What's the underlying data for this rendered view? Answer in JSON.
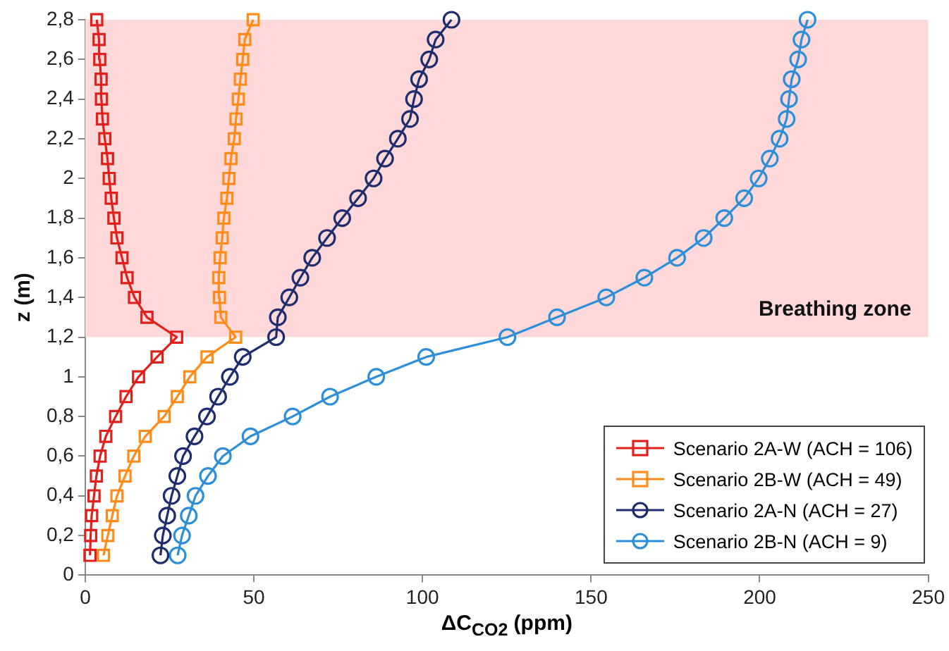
{
  "chart_data": {
    "type": "line",
    "xlabel": "ΔC$_{CO2}$ (ppm)",
    "ylabel": "z (m)",
    "xlim": [
      0,
      250
    ],
    "xticks": [
      0,
      50,
      100,
      150,
      200,
      250
    ],
    "ylim": [
      0,
      2.8
    ],
    "yticks": [
      0,
      {
        "value": 0.2,
        "label": "0,2"
      },
      {
        "value": 0.4,
        "label": "0,4"
      },
      {
        "value": 0.6,
        "label": "0,6"
      },
      {
        "value": 0.8,
        "label": "0,8"
      },
      1,
      {
        "value": 1.2,
        "label": "1,2"
      },
      {
        "value": 1.4,
        "label": "1,4"
      },
      {
        "value": 1.6,
        "label": "1,6"
      },
      {
        "value": 1.8,
        "label": "1,8"
      },
      2,
      {
        "value": 2.2,
        "label": "2,2"
      },
      {
        "value": 2.4,
        "label": "2,4"
      },
      {
        "value": 2.6,
        "label": "2,6"
      },
      {
        "value": 2.8,
        "label": "2,8"
      }
    ],
    "grid": false,
    "legend": "bottom right",
    "line_style": "solid",
    "bands": [
      {
        "axis": "y",
        "from": 1.2,
        "to": 2.8,
        "label": "Breathing zone",
        "color": "#ffd9d9"
      }
    ],
    "series": [
      {
        "name": "Scenario 2A-W (ACH = 106)",
        "color": "#e0201b",
        "marker": "square",
        "x": [
          1.4,
          1.6,
          1.9,
          2.6,
          3.3,
          4.4,
          6.1,
          9.0,
          12.1,
          15.8,
          21.3,
          27.1,
          18.3,
          14.6,
          12.4,
          10.9,
          9.4,
          8.5,
          7.7,
          7.1,
          6.6,
          5.8,
          5.1,
          4.8,
          4.7,
          4.3,
          4.1,
          3.4
        ],
        "values": [
          0.1,
          0.2,
          0.3,
          0.4,
          0.5,
          0.6,
          0.7,
          0.8,
          0.9,
          1,
          1.1,
          1.2,
          1.3,
          1.4,
          1.5,
          1.6,
          1.7,
          1.8,
          1.9,
          2,
          2.1,
          2.2,
          2.3,
          2.4,
          2.5,
          2.6,
          2.7,
          2.8
        ]
      },
      {
        "name": "Scenario 2B-W (ACH = 49)",
        "color": "#ff8c1a",
        "marker": "square",
        "x": [
          5.4,
          6.7,
          8.0,
          9.4,
          11.8,
          14.4,
          17.8,
          23.4,
          27.3,
          31.0,
          36.1,
          44.6,
          40.2,
          39.8,
          39.6,
          40.0,
          40.6,
          41.1,
          42.0,
          42.6,
          43.2,
          44.2,
          44.7,
          45.4,
          46.0,
          46.7,
          47.3,
          49.8
        ],
        "values": [
          0.1,
          0.2,
          0.3,
          0.4,
          0.5,
          0.6,
          0.7,
          0.8,
          0.9,
          1,
          1.1,
          1.2,
          1.3,
          1.4,
          1.5,
          1.6,
          1.7,
          1.8,
          1.9,
          2,
          2.1,
          2.2,
          2.3,
          2.4,
          2.5,
          2.6,
          2.7,
          2.8
        ]
      },
      {
        "name": "Scenario 2A-N (ACH = 27)",
        "color": "#1f2d6e",
        "marker": "circle",
        "x": [
          22.3,
          23.0,
          24.3,
          25.6,
          27.3,
          29.0,
          32.4,
          36.1,
          39.4,
          42.9,
          46.7,
          56.6,
          57.1,
          60.5,
          63.8,
          67.3,
          71.7,
          76.2,
          80.9,
          85.5,
          88.9,
          92.7,
          96.3,
          97.5,
          99.0,
          102.0,
          103.9,
          108.6
        ],
        "values": [
          0.1,
          0.2,
          0.3,
          0.4,
          0.5,
          0.6,
          0.7,
          0.8,
          0.9,
          1,
          1.1,
          1.2,
          1.3,
          1.4,
          1.5,
          1.6,
          1.7,
          1.8,
          1.9,
          2,
          2.1,
          2.2,
          2.3,
          2.4,
          2.5,
          2.6,
          2.7,
          2.8
        ]
      },
      {
        "name": "Scenario 2B-N (ACH = 9)",
        "color": "#2e8fd8",
        "marker": "circle",
        "x": [
          27.4,
          28.7,
          30.7,
          32.7,
          36.4,
          40.8,
          49.0,
          61.5,
          72.6,
          86.3,
          101.1,
          125.2,
          139.9,
          154.5,
          165.8,
          175.5,
          183.4,
          189.5,
          195.4,
          199.7,
          203.0,
          205.9,
          208.0,
          208.7,
          209.5,
          211.4,
          212.4,
          214.2
        ],
        "values": [
          0.1,
          0.2,
          0.3,
          0.4,
          0.5,
          0.6,
          0.7,
          0.8,
          0.9,
          1,
          1.1,
          1.2,
          1.3,
          1.4,
          1.5,
          1.6,
          1.7,
          1.8,
          1.9,
          2,
          2.1,
          2.2,
          2.3,
          2.4,
          2.5,
          2.6,
          2.7,
          2.8
        ]
      }
    ]
  }
}
